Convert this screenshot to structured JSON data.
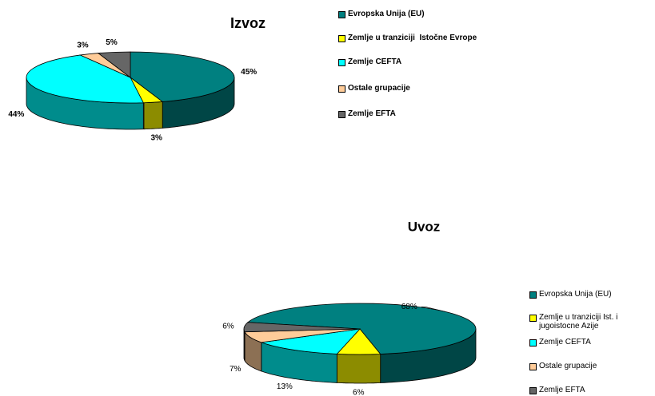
{
  "chart_data": [
    {
      "type": "pie",
      "title": "Izvoz",
      "categories": [
        "Evropska Unija (EU)",
        "Zemlje u tranziciji  Istočne Evrope",
        "Zemlje CEFTA",
        "Ostale grupacije",
        "Zemlje EFTA"
      ],
      "values": [
        45,
        3,
        44,
        3,
        5
      ],
      "value_labels": [
        "45%",
        "3%",
        "44%",
        "3%",
        "5%"
      ],
      "colors": [
        "#008080",
        "#ffff00",
        "#00ffff",
        "#ffcc99",
        "#666666"
      ],
      "legend": "right"
    },
    {
      "type": "pie",
      "title": "Uvoz",
      "categories": [
        "Evropska Unija (EU)",
        "Zemlje u tranziciji Ist. i jugoistocne Azije",
        "Zemlje CEFTA",
        "Ostale grupacije",
        "Zemlje EFTA"
      ],
      "values": [
        68,
        6,
        13,
        7,
        6
      ],
      "value_labels": [
        "68%",
        "6%",
        "13%",
        "7%",
        "6%"
      ],
      "colors": [
        "#008080",
        "#ffff00",
        "#00ffff",
        "#ffcc99",
        "#666666"
      ],
      "legend": "right"
    }
  ]
}
